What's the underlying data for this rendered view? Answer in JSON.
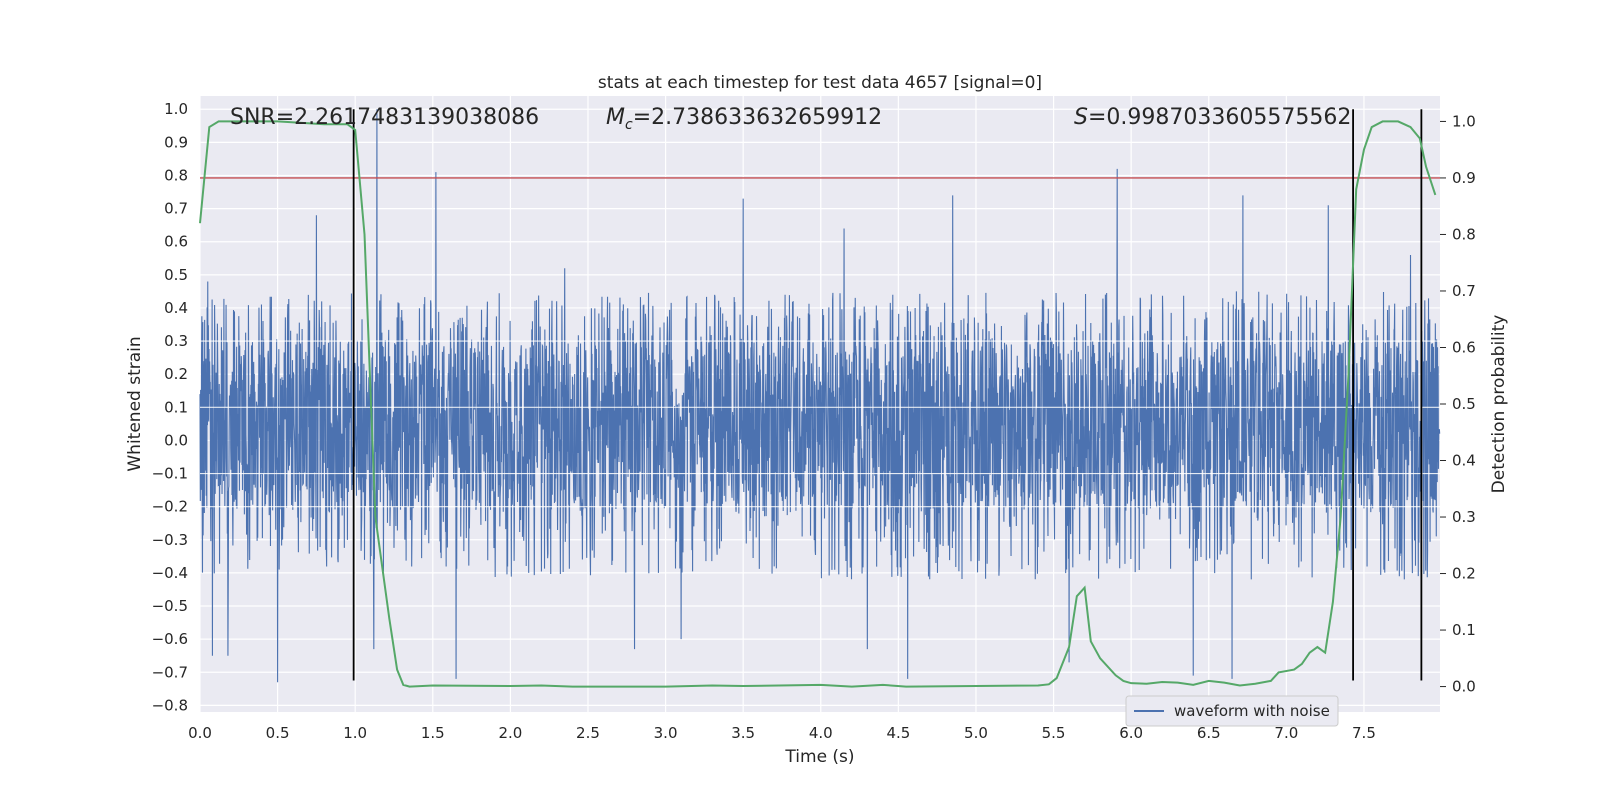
{
  "chart_data": {
    "type": "line",
    "title": "stats at each timestep for test data 4657 [signal=0]",
    "xlabel": "Time (s)",
    "ylabel": "Whitened strain",
    "y2label": "Detection probability",
    "xlim": [
      0.0,
      7.99
    ],
    "ylim": [
      -0.82,
      1.04
    ],
    "y2lim": [
      -0.045,
      1.045
    ],
    "xticks": [
      "0.0",
      "0.5",
      "1.0",
      "1.5",
      "2.0",
      "2.5",
      "3.0",
      "3.5",
      "4.0",
      "4.5",
      "5.0",
      "5.5",
      "6.0",
      "6.5",
      "7.0",
      "7.5"
    ],
    "yticks": [
      "1.0",
      "0.9",
      "0.8",
      "0.7",
      "0.6",
      "0.5",
      "0.4",
      "0.3",
      "0.2",
      "0.1",
      "0.0",
      "−0.1",
      "−0.2",
      "−0.3",
      "−0.4",
      "−0.5",
      "−0.6",
      "−0.7",
      "−0.8"
    ],
    "y2ticks": [
      "1.0",
      "0.9",
      "0.8",
      "0.7",
      "0.6",
      "0.5",
      "0.4",
      "0.3",
      "0.2",
      "0.1",
      "0.0"
    ],
    "grid": true,
    "legend": "lower-right",
    "annotations": {
      "snr": "SNR=2.2617483139038086",
      "mc_symbol": "M",
      "mc_sub": "c",
      "mc_value": "=2.738633632659912",
      "s_symbol": "S",
      "s_value": "=0.9987033605575562"
    },
    "series": [
      {
        "name": "waveform with noise",
        "color": "#4c72b0",
        "axis": "left",
        "kind": "noise",
        "sample_interval": 0.002,
        "core_band": [
          -0.21,
          0.3
        ],
        "typical_max": 0.45,
        "typical_min": -0.42,
        "peaks": [
          {
            "x": 0.05,
            "y": 0.48
          },
          {
            "x": 0.5,
            "y": 0.57
          },
          {
            "x": 0.75,
            "y": 0.68
          },
          {
            "x": 1.14,
            "y": 1.0
          },
          {
            "x": 1.52,
            "y": 0.81
          },
          {
            "x": 2.35,
            "y": 0.52
          },
          {
            "x": 3.5,
            "y": 0.73
          },
          {
            "x": 4.15,
            "y": 0.64
          },
          {
            "x": 4.85,
            "y": 0.74
          },
          {
            "x": 5.91,
            "y": 0.82
          },
          {
            "x": 6.72,
            "y": 0.74
          },
          {
            "x": 7.27,
            "y": 0.71
          },
          {
            "x": 7.8,
            "y": 0.56
          }
        ],
        "troughs": [
          {
            "x": 0.5,
            "y": -0.73
          },
          {
            "x": 0.08,
            "y": -0.65
          },
          {
            "x": 0.18,
            "y": -0.65
          },
          {
            "x": 1.12,
            "y": -0.63
          },
          {
            "x": 1.65,
            "y": -0.72
          },
          {
            "x": 2.8,
            "y": -0.63
          },
          {
            "x": 3.1,
            "y": -0.6
          },
          {
            "x": 4.3,
            "y": -0.63
          },
          {
            "x": 4.56,
            "y": -0.72
          },
          {
            "x": 5.6,
            "y": -0.67
          },
          {
            "x": 6.4,
            "y": -0.71
          },
          {
            "x": 6.65,
            "y": -0.72
          }
        ]
      },
      {
        "name": "",
        "color": "#55a868",
        "axis": "right",
        "points": [
          [
            0.0,
            0.82
          ],
          [
            0.06,
            0.99
          ],
          [
            0.12,
            1.0
          ],
          [
            0.5,
            1.0
          ],
          [
            0.8,
            0.995
          ],
          [
            0.95,
            0.995
          ],
          [
            1.0,
            0.985
          ],
          [
            1.06,
            0.8
          ],
          [
            1.13,
            0.3
          ],
          [
            1.17,
            0.22
          ],
          [
            1.22,
            0.12
          ],
          [
            1.27,
            0.03
          ],
          [
            1.31,
            0.003
          ],
          [
            1.35,
            0.0
          ],
          [
            1.5,
            0.002
          ],
          [
            2.0,
            0.001
          ],
          [
            2.2,
            0.002
          ],
          [
            2.4,
            0.0
          ],
          [
            3.0,
            0.0
          ],
          [
            3.3,
            0.002
          ],
          [
            3.5,
            0.001
          ],
          [
            4.0,
            0.003
          ],
          [
            4.2,
            0.0
          ],
          [
            4.4,
            0.003
          ],
          [
            4.55,
            0.0
          ],
          [
            5.0,
            0.001
          ],
          [
            5.4,
            0.002
          ],
          [
            5.47,
            0.004
          ],
          [
            5.52,
            0.015
          ],
          [
            5.6,
            0.07
          ],
          [
            5.65,
            0.16
          ],
          [
            5.7,
            0.175
          ],
          [
            5.74,
            0.08
          ],
          [
            5.8,
            0.05
          ],
          [
            5.9,
            0.02
          ],
          [
            5.95,
            0.01
          ],
          [
            6.0,
            0.006
          ],
          [
            6.1,
            0.005
          ],
          [
            6.2,
            0.008
          ],
          [
            6.3,
            0.007
          ],
          [
            6.4,
            0.003
          ],
          [
            6.5,
            0.01
          ],
          [
            6.6,
            0.007
          ],
          [
            6.7,
            0.002
          ],
          [
            6.8,
            0.005
          ],
          [
            6.9,
            0.01
          ],
          [
            6.95,
            0.025
          ],
          [
            7.05,
            0.03
          ],
          [
            7.1,
            0.04
          ],
          [
            7.15,
            0.06
          ],
          [
            7.2,
            0.07
          ],
          [
            7.25,
            0.06
          ],
          [
            7.3,
            0.15
          ],
          [
            7.35,
            0.3
          ],
          [
            7.4,
            0.55
          ],
          [
            7.45,
            0.88
          ],
          [
            7.5,
            0.95
          ],
          [
            7.55,
            0.99
          ],
          [
            7.62,
            1.0
          ],
          [
            7.72,
            1.0
          ],
          [
            7.8,
            0.99
          ],
          [
            7.86,
            0.97
          ],
          [
            7.9,
            0.92
          ],
          [
            7.96,
            0.87
          ]
        ]
      }
    ],
    "threshold_line": {
      "value": 0.9,
      "axis": "right",
      "color": "#c44e52"
    },
    "vertical_lines": {
      "x": [
        0.99,
        7.43,
        7.87
      ],
      "y_range": [
        -0.725,
        1.0
      ],
      "color": "#000000"
    }
  }
}
